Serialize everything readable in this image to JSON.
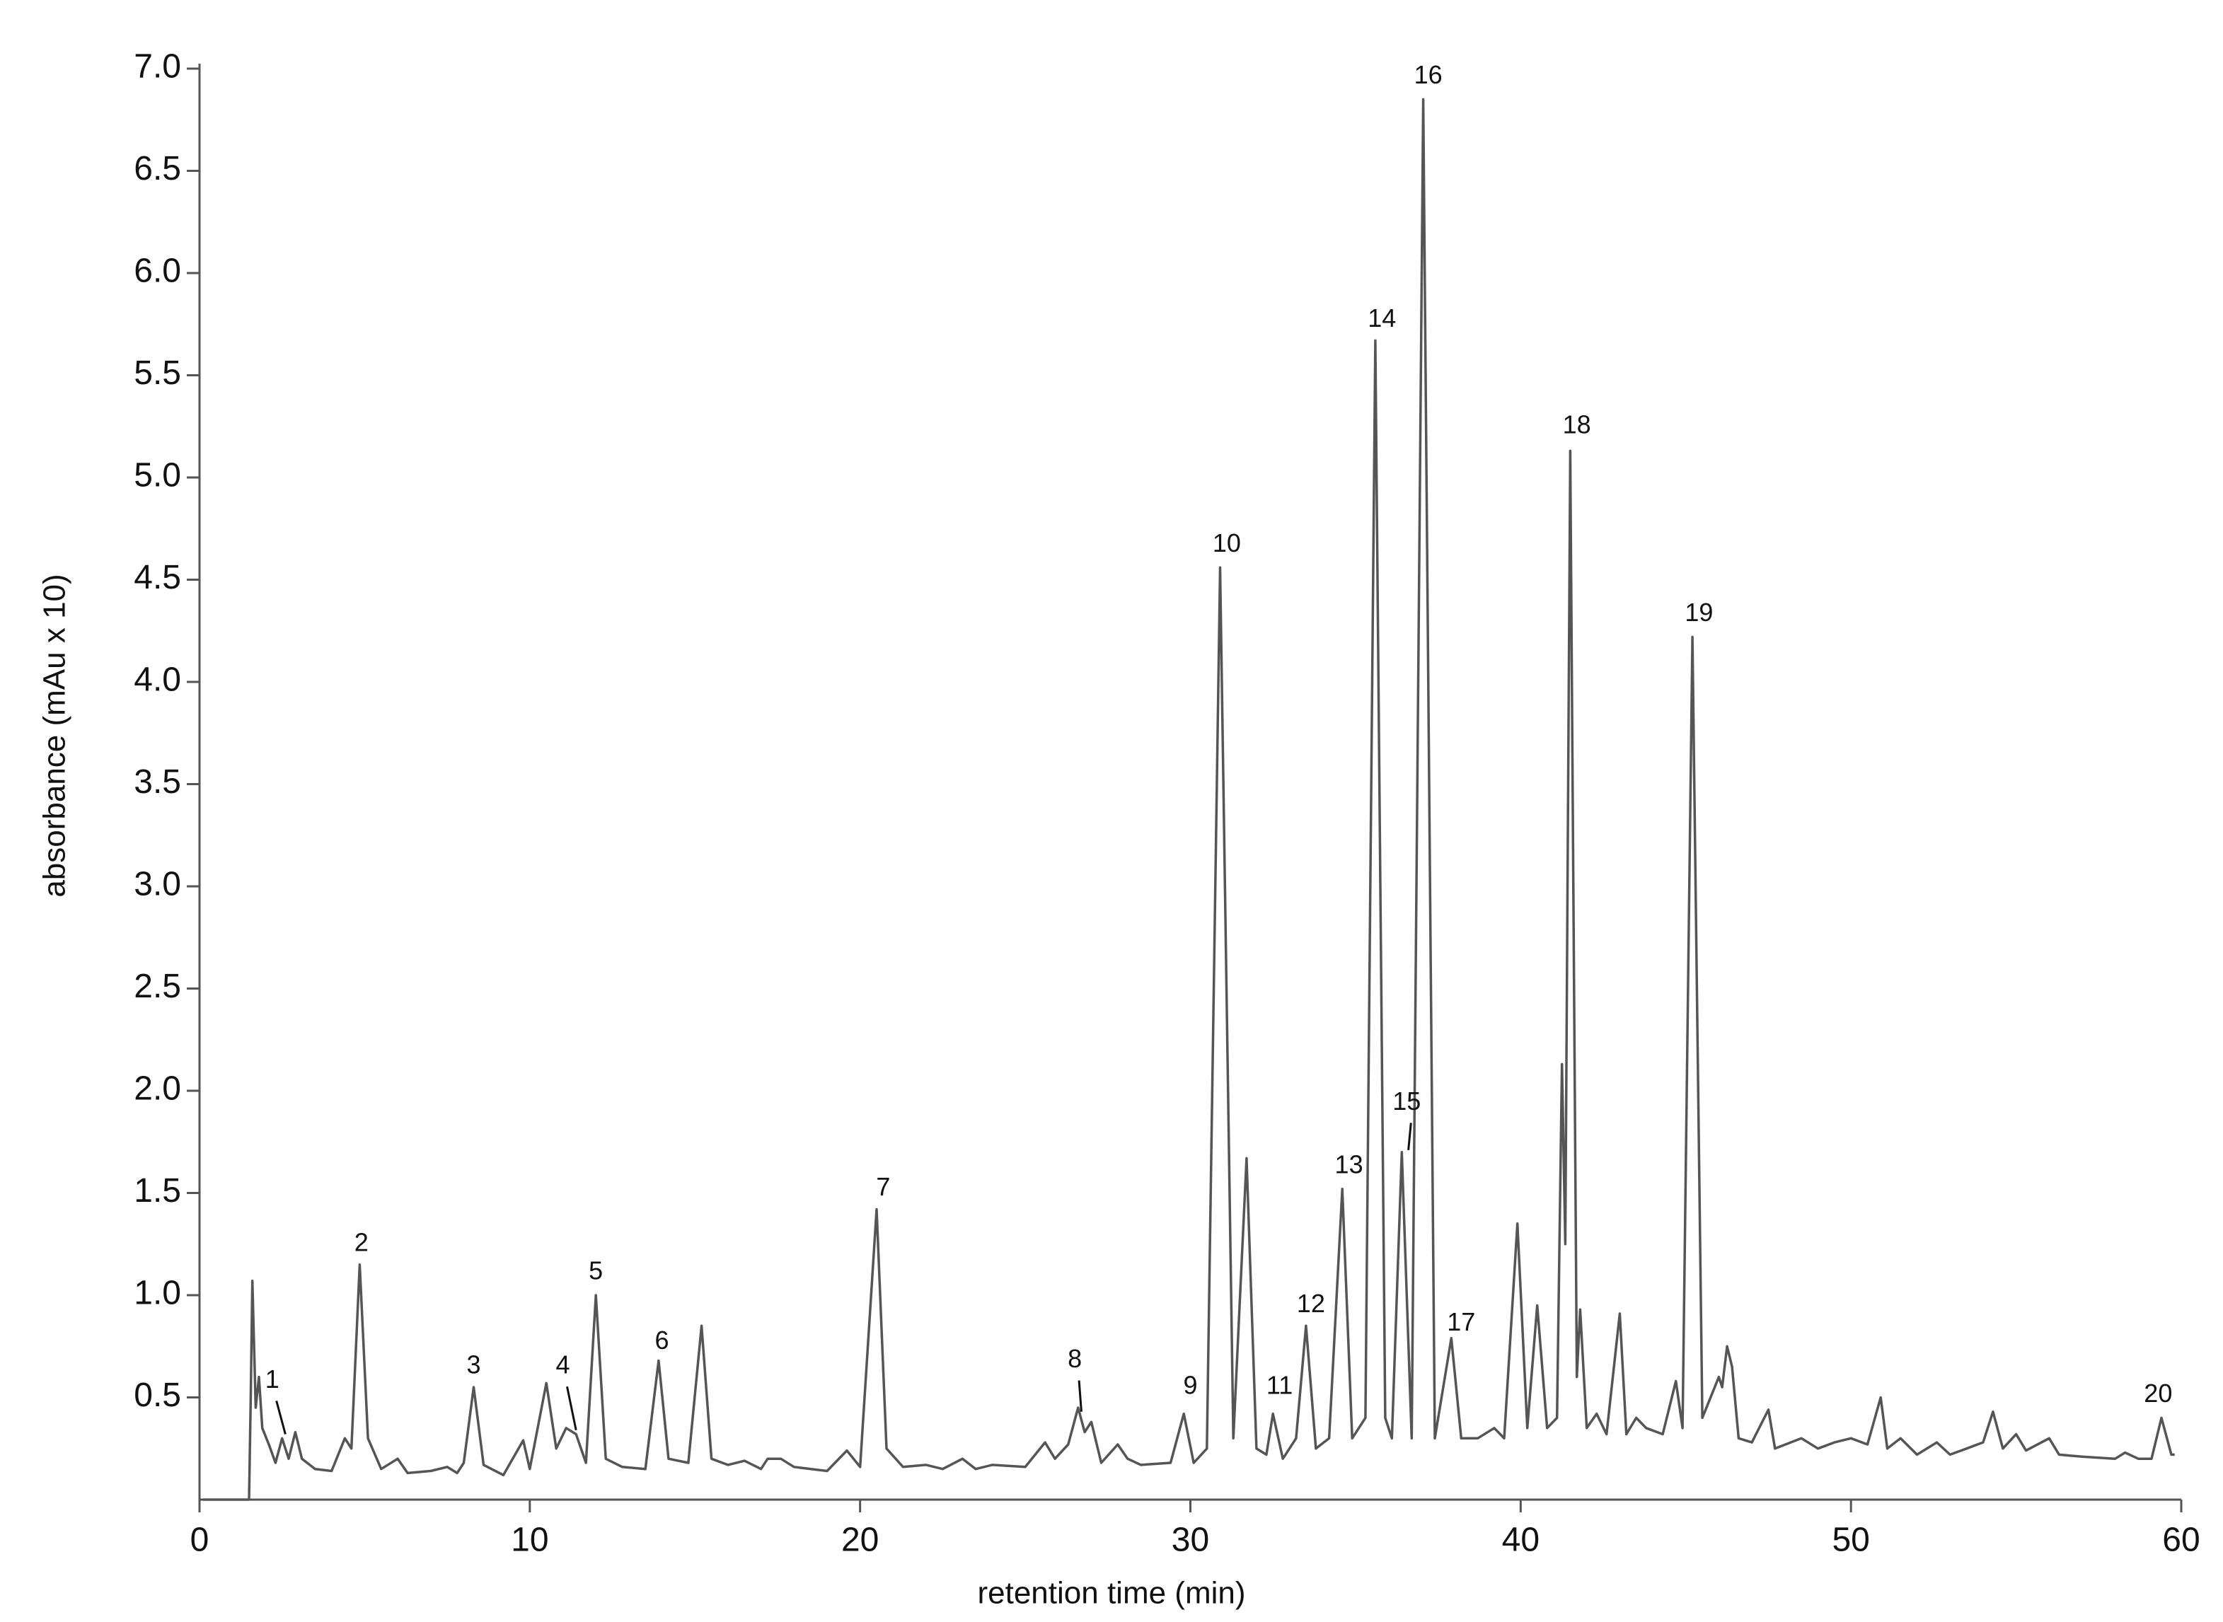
{
  "chart_data": {
    "type": "line",
    "xlabel": "retention time (min)",
    "ylabel": "absorbance (mAu x 10)",
    "color": "#555555",
    "xlim": [
      0,
      60
    ],
    "ylim": [
      0,
      7.0
    ],
    "xticks": [
      0,
      10,
      20,
      30,
      40,
      50,
      60
    ],
    "yticks": [
      0.5,
      {
        "value": 1.0,
        "label": "1.0"
      },
      1.5,
      {
        "value": 2.0,
        "label": "2.0"
      },
      2.5,
      {
        "value": 3.0,
        "label": "3.0"
      },
      3.5,
      {
        "value": 4.0,
        "label": "4.0"
      },
      4.5,
      {
        "value": 5.0,
        "label": "5.0"
      },
      5.5,
      {
        "value": 6.0,
        "label": "6.0"
      },
      6.5,
      {
        "value": 7.0,
        "label": "7.0"
      }
    ],
    "x": [
      0.1,
      1.5,
      1.55,
      1.6,
      1.7,
      1.8,
      1.9,
      2.1,
      2.3,
      2.5,
      2.7,
      2.9,
      3.1,
      3.5,
      4.0,
      4.4,
      4.6,
      4.85,
      5.1,
      5.5,
      6.0,
      6.3,
      7.0,
      7.5,
      7.8,
      8.0,
      8.3,
      8.6,
      9.2,
      9.8,
      10.0,
      10.5,
      10.8,
      11.1,
      11.4,
      11.7,
      12.0,
      12.3,
      12.8,
      13.5,
      13.9,
      14.2,
      14.8,
      15.2,
      15.5,
      16.0,
      16.5,
      17.0,
      17.2,
      17.6,
      18.0,
      19.0,
      19.6,
      20.0,
      20.5,
      20.8,
      21.3,
      22.0,
      22.5,
      23.1,
      23.5,
      24.0,
      25.0,
      25.6,
      25.9,
      26.3,
      26.6,
      26.8,
      27.0,
      27.3,
      27.8,
      28.1,
      28.5,
      29.4,
      29.8,
      30.1,
      30.5,
      30.9,
      31.3,
      31.7,
      32.0,
      32.3,
      32.5,
      32.8,
      33.2,
      33.5,
      33.8,
      34.2,
      34.6,
      34.9,
      35.3,
      35.6,
      35.9,
      36.1,
      36.4,
      36.7,
      37.05,
      37.4,
      37.9,
      38.2,
      38.7,
      39.2,
      39.5,
      39.9,
      40.2,
      40.5,
      40.8,
      41.1,
      41.25,
      41.35,
      41.5,
      41.7,
      41.8,
      42.0,
      42.3,
      42.6,
      43.0,
      43.2,
      43.5,
      43.8,
      44.3,
      44.7,
      44.9,
      45.2,
      45.5,
      46.0,
      46.1,
      46.25,
      46.4,
      46.6,
      47.0,
      47.5,
      47.7,
      48.5,
      49.0,
      49.5,
      50.0,
      50.5,
      50.9,
      51.1,
      51.5,
      52.0,
      52.6,
      53.0,
      53.5,
      54.0,
      54.3,
      54.6,
      55.0,
      55.3,
      56.0,
      56.3,
      57.0,
      58.0,
      58.3,
      58.7,
      59.1,
      59.4,
      59.7,
      59.8
    ],
    "values": [
      0,
      0,
      0.5,
      1.07,
      0.45,
      0.6,
      0.35,
      0.27,
      0.18,
      0.3,
      0.2,
      0.33,
      0.2,
      0.15,
      0.14,
      0.3,
      0.25,
      1.15,
      0.3,
      0.15,
      0.2,
      0.13,
      0.14,
      0.16,
      0.13,
      0.18,
      0.55,
      0.17,
      0.12,
      0.29,
      0.15,
      0.57,
      0.25,
      0.35,
      0.32,
      0.18,
      1.0,
      0.2,
      0.16,
      0.15,
      0.68,
      0.2,
      0.18,
      0.85,
      0.2,
      0.17,
      0.19,
      0.15,
      0.2,
      0.2,
      0.16,
      0.14,
      0.24,
      0.16,
      1.42,
      0.25,
      0.16,
      0.17,
      0.15,
      0.2,
      0.15,
      0.17,
      0.16,
      0.28,
      0.2,
      0.27,
      0.45,
      0.33,
      0.38,
      0.18,
      0.27,
      0.2,
      0.17,
      0.18,
      0.42,
      0.18,
      0.25,
      4.56,
      0.3,
      1.67,
      0.25,
      0.22,
      0.42,
      0.2,
      0.3,
      0.85,
      0.25,
      0.3,
      1.52,
      0.3,
      0.4,
      5.67,
      0.4,
      0.3,
      1.7,
      0.3,
      6.85,
      0.3,
      0.79,
      0.3,
      0.3,
      0.35,
      0.3,
      1.35,
      0.35,
      0.95,
      0.35,
      0.4,
      2.13,
      1.25,
      5.13,
      0.6,
      0.93,
      0.35,
      0.42,
      0.32,
      0.91,
      0.32,
      0.4,
      0.35,
      0.32,
      0.58,
      0.35,
      4.22,
      0.4,
      0.6,
      0.55,
      0.75,
      0.65,
      0.3,
      0.28,
      0.44,
      0.25,
      0.3,
      0.25,
      0.28,
      0.3,
      0.27,
      0.5,
      0.25,
      0.3,
      0.22,
      0.28,
      0.22,
      0.25,
      0.28,
      0.43,
      0.25,
      0.32,
      0.24,
      0.3,
      0.22,
      0.21,
      0.2,
      0.23,
      0.2,
      0.2,
      0.4,
      0.22,
      0.22
    ],
    "annotations": [
      {
        "text": "1",
        "x": 2.2,
        "y": 0.58,
        "xy": [
          2.6,
          0.32
        ]
      },
      {
        "text": "2",
        "x": 4.9,
        "y": 1.25
      },
      {
        "text": "3",
        "x": 8.3,
        "y": 0.65
      },
      {
        "text": "4",
        "x": 11.0,
        "y": 0.65,
        "xy": [
          11.4,
          0.34
        ]
      },
      {
        "text": "5",
        "x": 12.0,
        "y": 1.11
      },
      {
        "text": "6",
        "x": 14.0,
        "y": 0.77
      },
      {
        "text": "7",
        "x": 20.7,
        "y": 1.52
      },
      {
        "text": "8",
        "x": 26.5,
        "y": 0.68,
        "xy": [
          26.7,
          0.43
        ]
      },
      {
        "text": "9",
        "x": 30.0,
        "y": 0.55
      },
      {
        "text": "10",
        "x": 31.1,
        "y": 4.67
      },
      {
        "text": "11",
        "x": 32.7,
        "y": 0.55
      },
      {
        "text": "12",
        "x": 33.65,
        "y": 0.95
      },
      {
        "text": "13",
        "x": 34.8,
        "y": 1.63
      },
      {
        "text": "14",
        "x": 35.8,
        "y": 5.77
      },
      {
        "text": "15",
        "x": 36.55,
        "y": 1.94,
        "xy": [
          36.6,
          1.71
        ]
      },
      {
        "text": "16",
        "x": 37.2,
        "y": 6.96
      },
      {
        "text": "17",
        "x": 38.2,
        "y": 0.86
      },
      {
        "text": "18",
        "x": 41.7,
        "y": 5.25
      },
      {
        "text": "19",
        "x": 45.4,
        "y": 4.33
      },
      {
        "text": "20",
        "x": 59.3,
        "y": 0.51
      }
    ]
  }
}
